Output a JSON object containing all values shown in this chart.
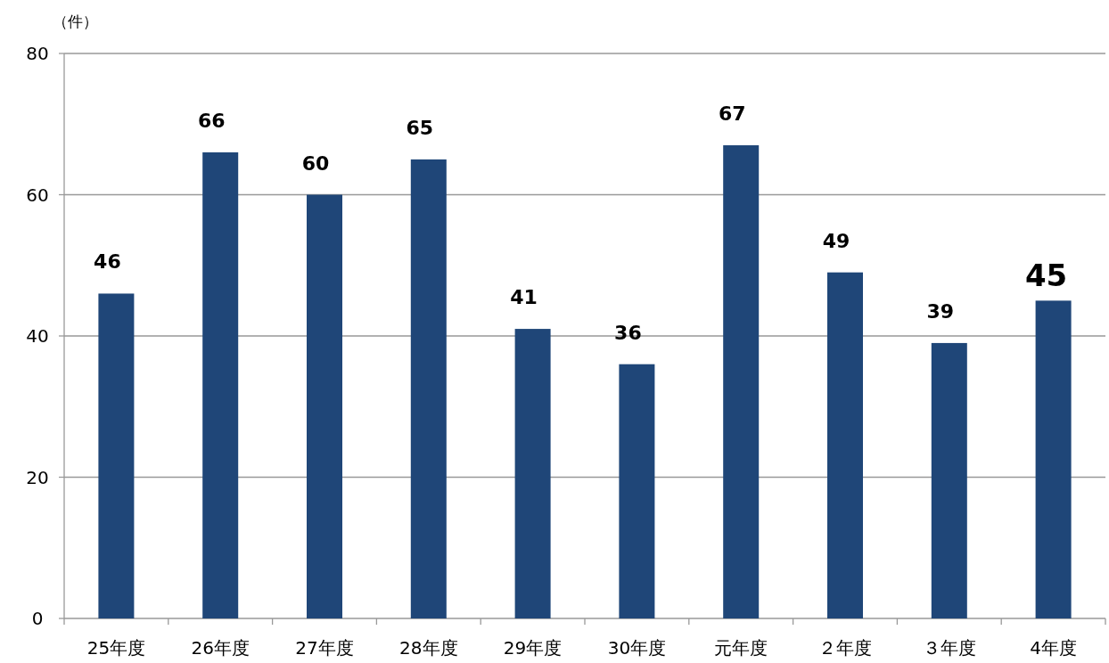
{
  "chart_data": {
    "type": "bar",
    "ylabel": "（件）",
    "categories": [
      "25年度",
      "26年度",
      "27年度",
      "28年度",
      "29年度",
      "30年度",
      "元年度",
      "２年度",
      "３年度",
      "4年度"
    ],
    "values": [
      46,
      66,
      60,
      65,
      41,
      36,
      67,
      49,
      39,
      45
    ],
    "color": "#1f4678",
    "ylim": [
      0,
      80
    ],
    "yticks": [
      0,
      20,
      40,
      60,
      80
    ],
    "grid": "y",
    "data_labels": true
  }
}
